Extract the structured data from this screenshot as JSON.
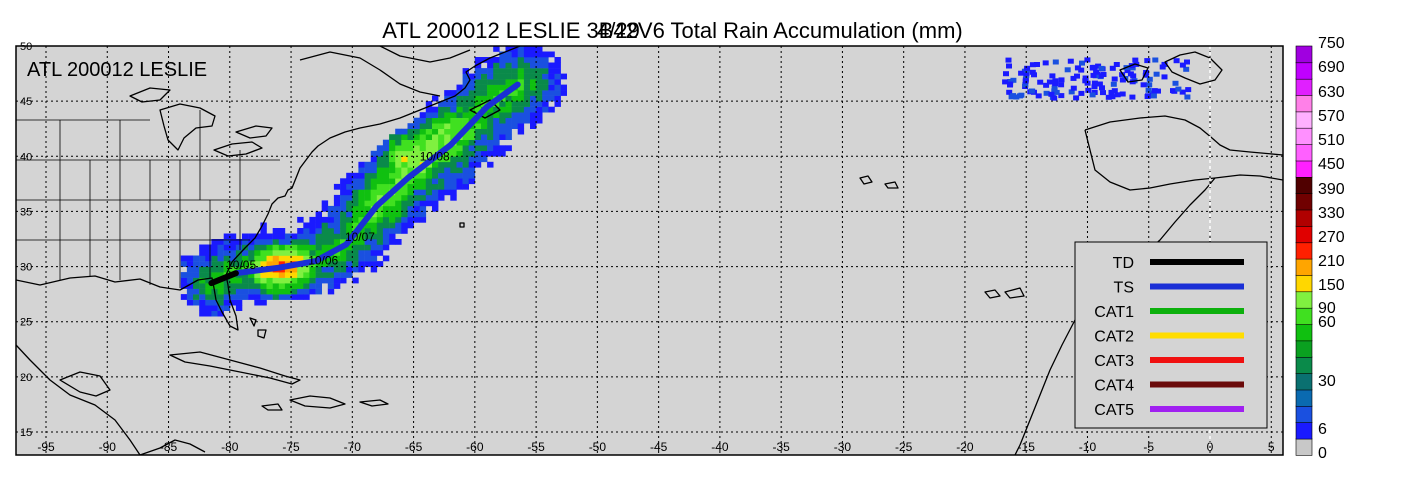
{
  "title": "ATL 200012 LESLIE 3B42V6 Total Rain Accumulation (mm)",
  "title_overlap_text": "4/29",
  "storm_label": "ATL 200012 LESLIE",
  "colors": {
    "map_background": "#d4d4d4",
    "land_outline": "#000000",
    "grid": "#000000"
  },
  "axes": {
    "x_ticks": [
      "-95",
      "-90",
      "-85",
      "-80",
      "-75",
      "-70",
      "-65",
      "-60",
      "-55",
      "-50",
      "-45",
      "-40",
      "-35",
      "-30",
      "-25",
      "-20",
      "-15",
      "-10",
      "-5",
      "0",
      "5"
    ],
    "y_ticks": [
      "15",
      "20",
      "25",
      "30",
      "35",
      "40",
      "45",
      "50"
    ],
    "x_range": [
      -97,
      6
    ],
    "y_range": [
      14,
      50
    ]
  },
  "track": {
    "color": "#1a2fd6",
    "points": [
      {
        "lon": -81.5,
        "lat": 28.5,
        "category": "TD"
      },
      {
        "lon": -79.5,
        "lat": 29.4,
        "category": "TS"
      },
      {
        "lon": -76.0,
        "lat": 29.9,
        "category": "TS"
      },
      {
        "lon": -73.0,
        "lat": 30.5,
        "category": "TS"
      },
      {
        "lon": -70.5,
        "lat": 32.0,
        "category": "TS"
      },
      {
        "lon": -68.0,
        "lat": 35.5,
        "category": "TS"
      },
      {
        "lon": -65.5,
        "lat": 38.0,
        "category": "TS"
      },
      {
        "lon": -62.0,
        "lat": 41.0,
        "category": "TS"
      },
      {
        "lon": -59.0,
        "lat": 44.5,
        "category": "TS"
      },
      {
        "lon": -56.5,
        "lat": 46.5,
        "category": "TS"
      }
    ],
    "date_labels": [
      {
        "text": "10/05",
        "lon": -80.3,
        "lat": 29.8
      },
      {
        "text": "10/06",
        "lon": -73.6,
        "lat": 30.2
      },
      {
        "text": "10/07",
        "lon": -70.6,
        "lat": 32.3
      },
      {
        "text": "10/08",
        "lon": -64.5,
        "lat": 39.6
      }
    ]
  },
  "legend": {
    "items": [
      {
        "label": "TD",
        "color": "#000000"
      },
      {
        "label": "TS",
        "color": "#1a2fd6"
      },
      {
        "label": "CAT1",
        "color": "#0db00d"
      },
      {
        "label": "CAT2",
        "color": "#ffdd00"
      },
      {
        "label": "CAT3",
        "color": "#f01010"
      },
      {
        "label": "CAT4",
        "color": "#6b0a0a"
      },
      {
        "label": "CAT5",
        "color": "#a020f0"
      }
    ]
  },
  "colorbar": {
    "labels": [
      "750",
      "690",
      "630",
      "570",
      "510",
      "450",
      "390",
      "330",
      "270",
      "210",
      "150",
      "90",
      "60",
      "30",
      "6",
      "0"
    ],
    "colors": [
      "#c8c8c8",
      "#1a1aff",
      "#1a50e0",
      "#0a6ab0",
      "#0a7070",
      "#0a8a4a",
      "#0aa020",
      "#10c010",
      "#40e020",
      "#80f040",
      "#ffd700",
      "#ffa500",
      "#ff2000",
      "#e00000",
      "#b00000",
      "#700000",
      "#500000",
      "#ff20ff",
      "#ff60ff",
      "#ff90ff",
      "#ffb0ff",
      "#ff80e8",
      "#e020ff",
      "#c000ff",
      "#a000e0"
    ]
  },
  "rain_swath": {
    "units": "mm",
    "max_value_mm": 210,
    "cores": [
      {
        "lon": -76,
        "lat": 29.5,
        "peak_mm": 210
      },
      {
        "lon": -66,
        "lat": 40,
        "peak_mm": 150
      },
      {
        "lon": -63,
        "lat": 42,
        "peak_mm": 90
      },
      {
        "lon": -68,
        "lat": 36,
        "peak_mm": 60
      }
    ]
  }
}
